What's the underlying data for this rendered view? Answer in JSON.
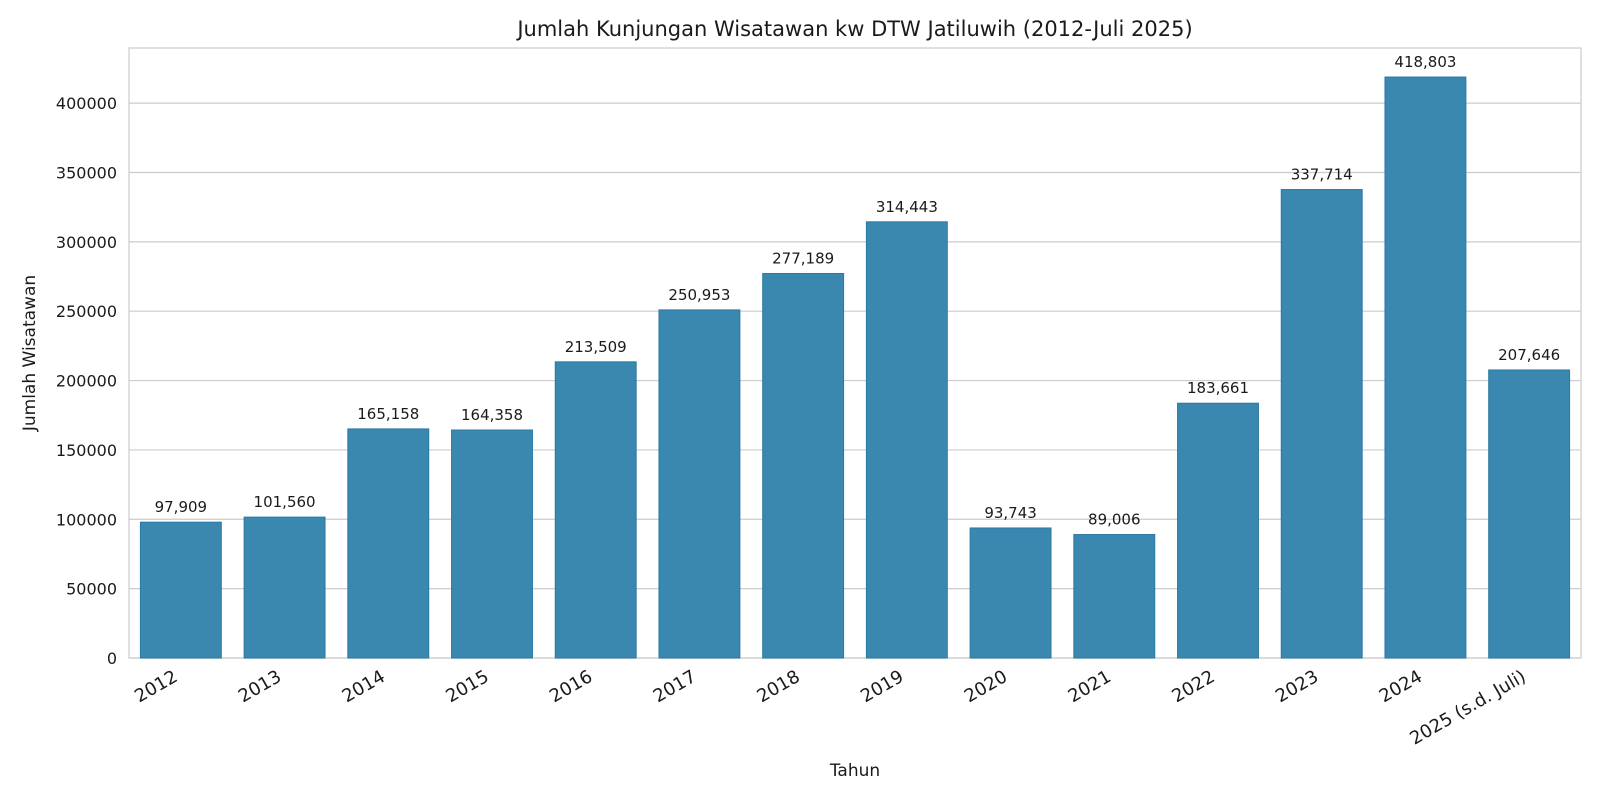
{
  "chart_data": {
    "type": "bar",
    "title": "Jumlah Kunjungan Wisatawan kw DTW Jatiluwih (2012-Juli 2025)",
    "xlabel": "Tahun",
    "ylabel": "Jumlah Wisatawan",
    "categories": [
      "2012",
      "2013",
      "2014",
      "2015",
      "2016",
      "2017",
      "2018",
      "2019",
      "2020",
      "2021",
      "2022",
      "2023",
      "2024",
      "2025 (s.d. Juli)"
    ],
    "values": [
      97909,
      101560,
      165158,
      164358,
      213509,
      250953,
      277189,
      314443,
      93743,
      89006,
      183661,
      337714,
      418803,
      207646
    ],
    "data_labels": [
      "97,909",
      "101,560",
      "165,158",
      "164,358",
      "213,509",
      "250,953",
      "277,189",
      "314,443",
      "93,743",
      "89,006",
      "183,661",
      "337,714",
      "418,803",
      "207,646"
    ],
    "yticks": [
      0,
      50000,
      100000,
      150000,
      200000,
      250000,
      300000,
      350000,
      400000
    ],
    "ytick_labels": [
      "0",
      "50000",
      "100000",
      "150000",
      "200000",
      "250000",
      "300000",
      "350000",
      "400000"
    ],
    "ylim": [
      0,
      439743
    ],
    "grid": true,
    "bar_color": "#3a87b0",
    "bar_edge_color": "#2a7aa3"
  }
}
